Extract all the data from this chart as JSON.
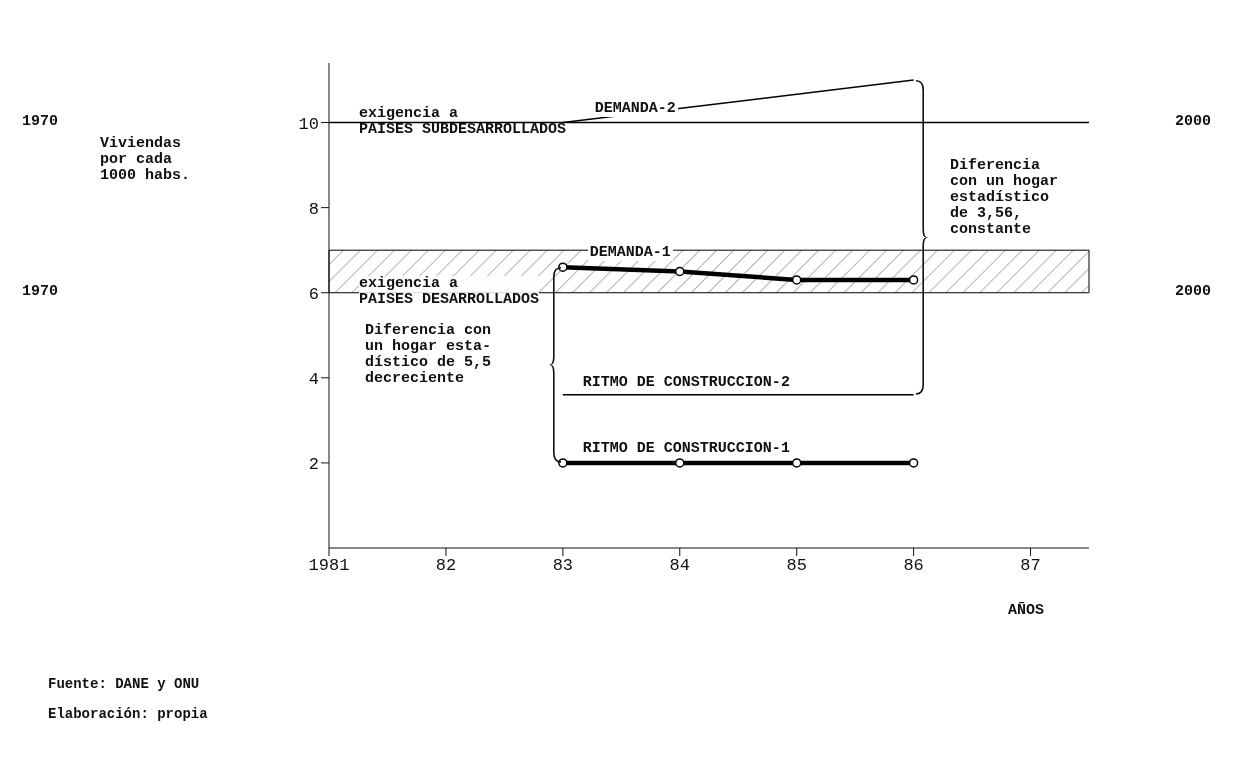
{
  "chart_data": {
    "type": "line",
    "xlabel": "AÑOS",
    "series": [
      {
        "name": "DEMANDA-2",
        "color": "#000000",
        "x": [
          1983,
          1986
        ],
        "values": [
          10,
          11
        ],
        "marker": "none"
      },
      {
        "name": "DEMANDA-1",
        "color": "#000000",
        "x": [
          1983,
          1984,
          1985,
          1986
        ],
        "values": [
          6.6,
          6.5,
          6.3,
          6.3
        ],
        "marker": "circle"
      },
      {
        "name": "RITMO DE CONSTRUCCION-2",
        "color": "#000000",
        "x": [
          1983,
          1986
        ],
        "values": [
          3.6,
          3.6
        ],
        "marker": "none"
      },
      {
        "name": "RITMO DE CONSTRUCCION-1",
        "color": "#000000",
        "x": [
          1983,
          1984,
          1985,
          1986
        ],
        "values": [
          2,
          2,
          2,
          2
        ],
        "marker": "circle"
      }
    ],
    "xlim": [
      1981,
      1987.5
    ],
    "xticks": [
      {
        "value": 1981,
        "label": "1981"
      },
      {
        "value": 1982,
        "label": "82"
      },
      {
        "value": 1983,
        "label": "83"
      },
      {
        "value": 1984,
        "label": "84"
      },
      {
        "value": 1985,
        "label": "85"
      },
      {
        "value": 1986,
        "label": "86"
      },
      {
        "value": 1987,
        "label": "87"
      }
    ],
    "ylim": [
      0,
      11.4
    ],
    "yticks": [
      2,
      4,
      6,
      8,
      10
    ],
    "ref_lines": [
      {
        "axis": "y",
        "value": 10,
        "label": "exigencia a\nPAISES SUBDESARROLLADOS",
        "color": "#000000"
      }
    ],
    "bands": [
      {
        "axis": "y",
        "from": 6,
        "to": 7,
        "label": "exigencia a\nPAISES DESARROLLADOS",
        "color": "#000000"
      }
    ],
    "annotations": [
      "Viviendas\npor cada\n1000 habs.",
      "1970",
      "2000",
      "1970",
      "2000",
      "Diferencia\ncon un hogar\nestadístico\nde 3,56,\nconstante",
      "Diferencia con\nun hogar esta-\ndístico de 5,5\ndecreciente",
      "Fuente: DANE y ONU",
      "Elaboración: propia"
    ]
  }
}
